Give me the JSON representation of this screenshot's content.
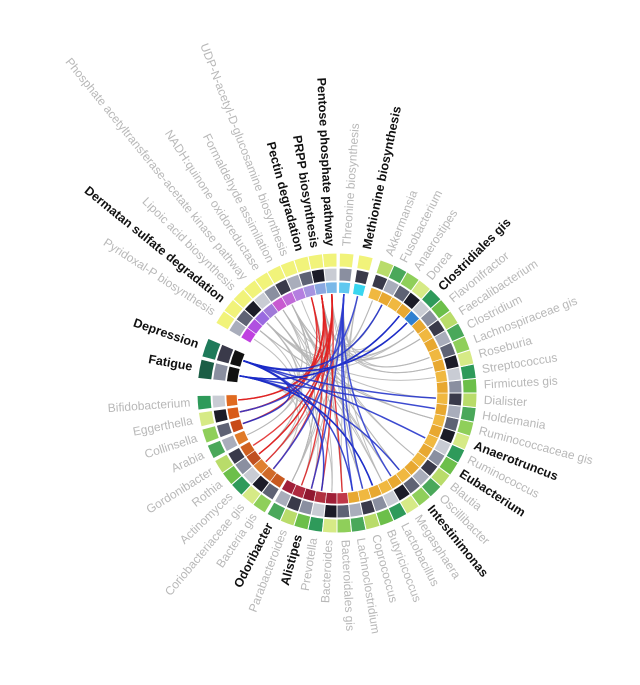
{
  "nodes": [
    {
      "label": "Methionine biosynthesis",
      "bold": true
    },
    {
      "label": "Threonine biosynthesis"
    },
    {
      "label": "Pentose phosphate pathway",
      "bold": true
    },
    {
      "label": "PRPP biosynthesis",
      "bold": true
    },
    {
      "label": "Pectin degradation",
      "bold": true
    },
    {
      "label": "UDP-N-acetyl-D-glucosamine biosynthesis"
    },
    {
      "label": "Formaldehyde assimilation"
    },
    {
      "label": "NADH:quinone oxidoreductase"
    },
    {
      "label": "Phosphate acetyltransferase-acetate kinase pathway"
    },
    {
      "label": "Lipoic acid biosynthesis"
    },
    {
      "label": "Dermatan sulfate degradation",
      "bold": true
    },
    {
      "label": "Pyridoxal-P biosynthesis"
    },
    {
      "label": "Depression",
      "bold": true
    },
    {
      "label": "Fatigue",
      "bold": true
    },
    {
      "label": "Bifidobacterium"
    },
    {
      "label": "Eggerthella"
    },
    {
      "label": "Collinsella"
    },
    {
      "label": "Arabia"
    },
    {
      "label": "Gordonibacter"
    },
    {
      "label": "Rothia"
    },
    {
      "label": "Actinomyces"
    },
    {
      "label": "Coriobacteriaceae gis"
    },
    {
      "label": "Bacteria gis"
    },
    {
      "label": "Odoribacter",
      "bold": true
    },
    {
      "label": "Parabacteroides"
    },
    {
      "label": "Alistipes",
      "bold": true
    },
    {
      "label": "Prevotella"
    },
    {
      "label": "Bacteroides"
    },
    {
      "label": "Bacteroidales gis"
    },
    {
      "label": "Lachnoclostridium"
    },
    {
      "label": "Coprococcus"
    },
    {
      "label": "Butyricicoccus"
    },
    {
      "label": "Lactobacillus"
    },
    {
      "label": "Megasphaera"
    },
    {
      "label": "Intestinimonas",
      "bold": true
    },
    {
      "label": "Oscillibacter"
    },
    {
      "label": "Blautia"
    },
    {
      "label": "Eubacterium",
      "bold": true
    },
    {
      "label": "Ruminococcus"
    },
    {
      "label": "Anaerotruncus",
      "bold": true
    },
    {
      "label": "Ruminococcaceae gis"
    },
    {
      "label": "Holdemania"
    },
    {
      "label": "Dialister"
    },
    {
      "label": "Firmicutes gis"
    },
    {
      "label": "Streptococcus"
    },
    {
      "label": "Roseburia"
    },
    {
      "label": "Lachnospiraceae gis"
    },
    {
      "label": "Clostridium"
    },
    {
      "label": "Faecalibacterium"
    },
    {
      "label": "Flavonifractor"
    },
    {
      "label": "Clostridiales gis",
      "bold": true
    },
    {
      "label": "Dorea"
    },
    {
      "label": "Anaerostipes"
    },
    {
      "label": "Fusobacterium"
    },
    {
      "label": "Akkermansia"
    }
  ]
}
